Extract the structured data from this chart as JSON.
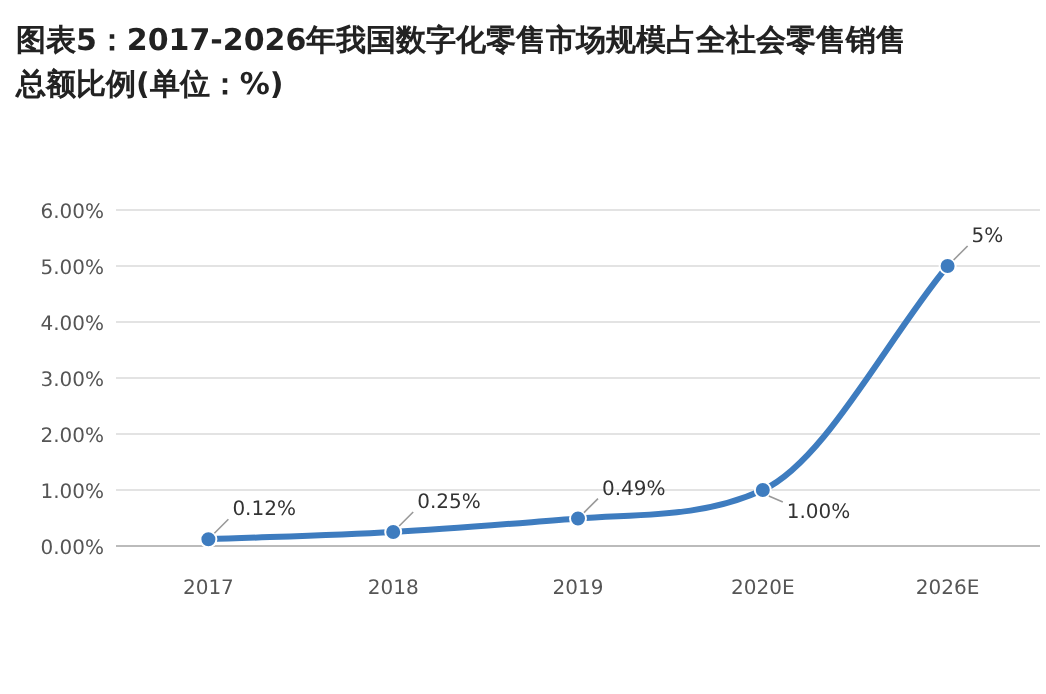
{
  "chart_data": {
    "type": "line",
    "title": "图表5：2017-2026年我国数字化零售市场规模占全社会零售销售总额比例(单位：%)",
    "categories": [
      "2017",
      "2018",
      "2019",
      "2020E",
      "2026E"
    ],
    "series": [
      {
        "color": "#3e7cbf",
        "values": [
          0.12,
          0.25,
          0.49,
          1.0,
          5.0
        ],
        "value_labels": [
          "0.12%",
          "0.25%",
          "0.49%",
          "1.00%",
          "5%"
        ]
      }
    ],
    "ylim": [
      0,
      6
    ],
    "yticks": [
      {
        "value": 0,
        "label": "0.00%"
      },
      {
        "value": 1,
        "label": "1.00%"
      },
      {
        "value": 2,
        "label": "2.00%"
      },
      {
        "value": 3,
        "label": "3.00%"
      },
      {
        "value": 4,
        "label": "4.00%"
      },
      {
        "value": 5,
        "label": "5.00%"
      },
      {
        "value": 6,
        "label": "6.00%"
      }
    ],
    "grid": "y",
    "marker": "circle",
    "line_style": "solid"
  }
}
